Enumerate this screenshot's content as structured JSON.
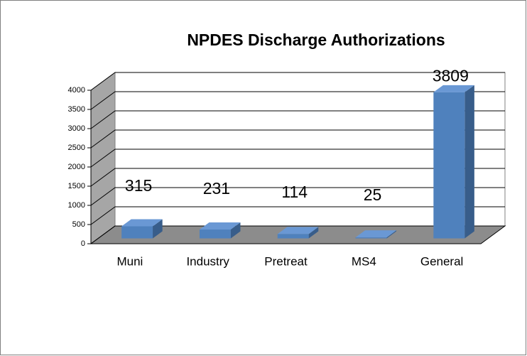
{
  "chart_data": {
    "type": "bar",
    "title": "NPDES Discharge Authorizations",
    "categories": [
      "Muni",
      "Industry",
      "Pretreat",
      "MS4",
      "General"
    ],
    "values": [
      315,
      231,
      114,
      25,
      3809
    ],
    "color": "#4f81bd",
    "ylim": [
      0,
      4000
    ],
    "yticks": [
      0,
      500,
      1000,
      1500,
      2000,
      2500,
      3000,
      3500,
      4000
    ],
    "grid": true
  }
}
